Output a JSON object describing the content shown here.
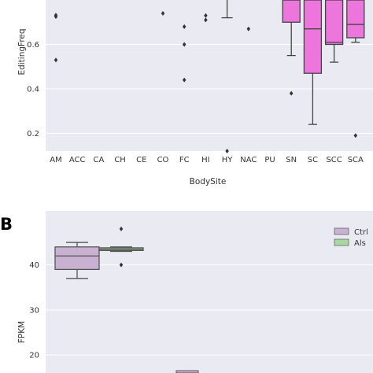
{
  "panel_letter": "B",
  "chart_data": [
    {
      "type": "box",
      "xlabel": "BodySite",
      "ylabel": "EditingFreq",
      "ylim": [
        0.12,
        0.8
      ],
      "yticks": [
        0.2,
        0.4,
        0.6
      ],
      "grid": true,
      "categories": [
        "AM",
        "ACC",
        "CA",
        "CH",
        "CE",
        "CO",
        "FC",
        "HI",
        "HY",
        "NAC",
        "PU",
        "SN",
        "SC",
        "SCC",
        "SCA"
      ],
      "boxes": [
        {
          "category": "SN",
          "color": "#ED76DC",
          "whislo": 0.55,
          "q1": 0.7,
          "med": 0.8,
          "q3": 0.8,
          "whishi": 0.8
        },
        {
          "category": "SC",
          "color": "#ED76DC",
          "whislo": 0.24,
          "q1": 0.47,
          "med": 0.67,
          "q3": 0.8,
          "whishi": 0.8
        },
        {
          "category": "SCC",
          "color": "#ED76DC",
          "whislo": 0.52,
          "q1": 0.6,
          "med": 0.61,
          "q3": 0.8,
          "whishi": 0.8
        },
        {
          "category": "SCA",
          "color": "#ED76DC",
          "whislo": 0.61,
          "q1": 0.63,
          "med": 0.69,
          "q3": 0.8,
          "whishi": 0.8
        }
      ],
      "outliers": [
        {
          "category": "AM",
          "value": 0.732
        },
        {
          "category": "AM",
          "value": 0.725
        },
        {
          "category": "AM",
          "value": 0.53
        },
        {
          "category": "CO",
          "value": 0.74
        },
        {
          "category": "FC",
          "value": 0.68
        },
        {
          "category": "FC",
          "value": 0.6
        },
        {
          "category": "FC",
          "value": 0.44
        },
        {
          "category": "HI",
          "value": 0.73
        },
        {
          "category": "HI",
          "value": 0.71
        },
        {
          "category": "HY",
          "value": 0.12
        },
        {
          "category": "NAC",
          "value": 0.67
        },
        {
          "category": "SN",
          "value": 0.38
        },
        {
          "category": "SCA",
          "value": 0.19
        }
      ],
      "partial_boxes": [
        {
          "category": "HY",
          "med": 0.72,
          "whishi": 0.8
        }
      ]
    },
    {
      "type": "box",
      "xlabel": "",
      "ylabel": "FPKM",
      "ylim": [
        16,
        52
      ],
      "yticks": [
        20,
        30,
        40
      ],
      "grid": true,
      "legend": {
        "position": "top-right",
        "entries": [
          {
            "name": "Ctrl",
            "color": "#C9B1D1"
          },
          {
            "name": "Als",
            "color": "#A8D8A0"
          }
        ]
      },
      "boxes": [
        {
          "group": "Ctrl",
          "color": "#C9B1D1",
          "whislo": 37,
          "q1": 39,
          "med": 42,
          "q3": 44,
          "whishi": 45
        },
        {
          "group": "Als",
          "color": "#A8D8A0",
          "whislo": 43,
          "q1": 43.2,
          "med": 43.5,
          "q3": 43.8,
          "whishi": 44
        }
      ],
      "outliers": [
        {
          "group": "Als",
          "value": 48
        },
        {
          "group": "Als",
          "value": 40
        }
      ]
    }
  ]
}
